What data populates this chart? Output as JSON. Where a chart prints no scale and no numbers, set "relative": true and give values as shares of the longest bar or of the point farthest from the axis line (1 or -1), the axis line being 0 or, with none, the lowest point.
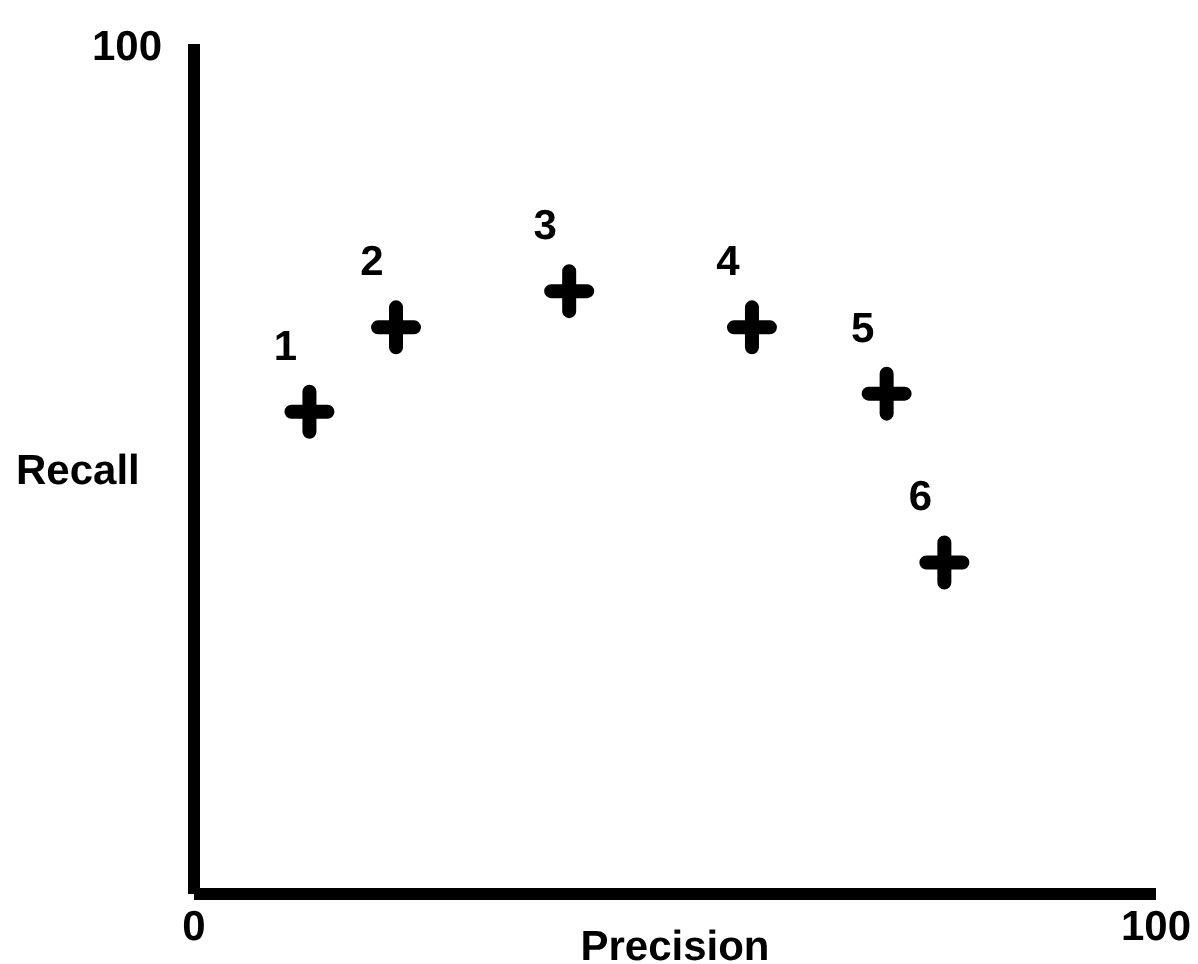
{
  "chart_data": {
    "type": "scatter",
    "xlabel": "Precision",
    "ylabel": "Recall",
    "relative": true,
    "x": [
      12,
      21,
      39,
      58,
      72,
      78
    ],
    "values": [
      0.8,
      0.94,
      1,
      0.94,
      0.83,
      0.55
    ],
    "color": "#000000",
    "marker": "cross",
    "xlim": [
      0,
      100
    ],
    "xticks": [
      0,
      100
    ],
    "grid": false,
    "legend": false,
    "annotations": [
      "100",
      {
        "text": "1",
        "x": 12,
        "y": 0.8
      },
      {
        "text": "2",
        "x": 21,
        "y": 0.94
      },
      {
        "text": "3",
        "x": 39,
        "y": 1
      },
      {
        "text": "4",
        "x": 58,
        "y": 0.94
      },
      {
        "text": "5",
        "x": 72,
        "y": 0.83
      },
      {
        "text": "6",
        "x": 78,
        "y": 0.55
      }
    ]
  }
}
